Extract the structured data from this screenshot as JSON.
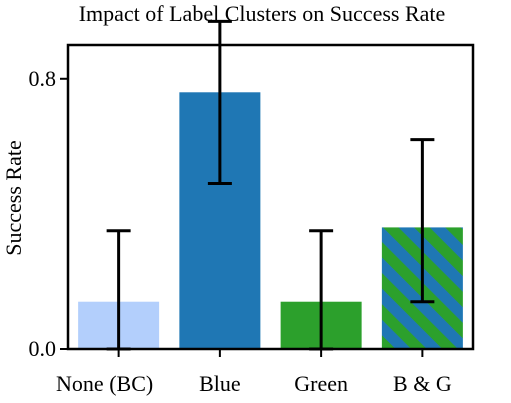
{
  "chart_data": {
    "type": "bar",
    "title": "Impact of Label Clusters on Success Rate",
    "xlabel": "",
    "ylabel": "Success Rate",
    "categories": [
      "None (BC)",
      "Blue",
      "Green",
      "B & G"
    ],
    "values": [
      0.14,
      0.76,
      0.14,
      0.36
    ],
    "error_low": [
      0.0,
      0.49,
      0.0,
      0.14
    ],
    "error_high": [
      0.35,
      0.97,
      0.35,
      0.62
    ],
    "ylim": [
      0.0,
      0.9
    ],
    "yticks": [
      0.0,
      0.8
    ],
    "ytick_labels": [
      "0.0",
      "0.8"
    ],
    "grid": false,
    "legend": "none",
    "colors": [
      "#b3cffc",
      "#1f77b4",
      "#2ca02c",
      "#1f77b4"
    ],
    "hatch": [
      null,
      null,
      null,
      "#2ca02c"
    ]
  }
}
